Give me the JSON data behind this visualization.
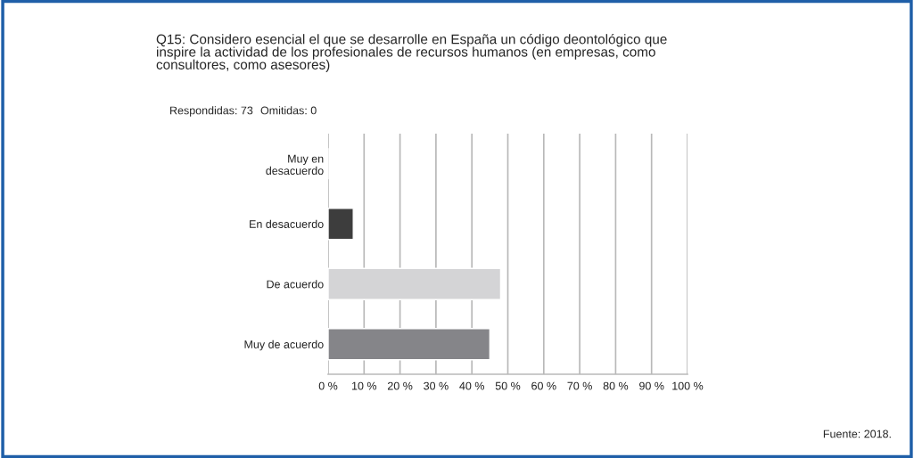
{
  "chart_data": {
    "type": "bar",
    "orientation": "horizontal",
    "title": "Q15: Considero esencial el que se desarrolle en España un código deontológico que\ninspire la actividad de los profesionales de recursos humanos (en empresas, como\nconsultores, como asesores)",
    "categories": [
      "Muy en\ndesacuerdo",
      "En desacuerdo",
      "De acuerdo",
      "Muy de acuerdo"
    ],
    "values": [
      0,
      7,
      48,
      45
    ],
    "colors": [
      null,
      "#3d3d3d",
      "#d4d4d6",
      "#858589"
    ],
    "xlim": [
      0,
      100
    ],
    "xticks": [
      {
        "value": 0,
        "label": "0 %"
      },
      {
        "value": 10,
        "label": "10 %"
      },
      {
        "value": 20,
        "label": "20 %"
      },
      {
        "value": 30,
        "label": "30 %"
      },
      {
        "value": 40,
        "label": "40 %"
      },
      {
        "value": 50,
        "label": "50 %"
      },
      {
        "value": 60,
        "label": "60 %"
      },
      {
        "value": 70,
        "label": "70 %"
      },
      {
        "value": 80,
        "label": "80 %"
      },
      {
        "value": 90,
        "label": "90 %"
      },
      {
        "value": 100,
        "label": "100 %"
      }
    ],
    "grid": "x",
    "annotations": [
      "Respondidas: 73",
      "Omitidas: 0",
      "Fuente: 2018."
    ]
  }
}
